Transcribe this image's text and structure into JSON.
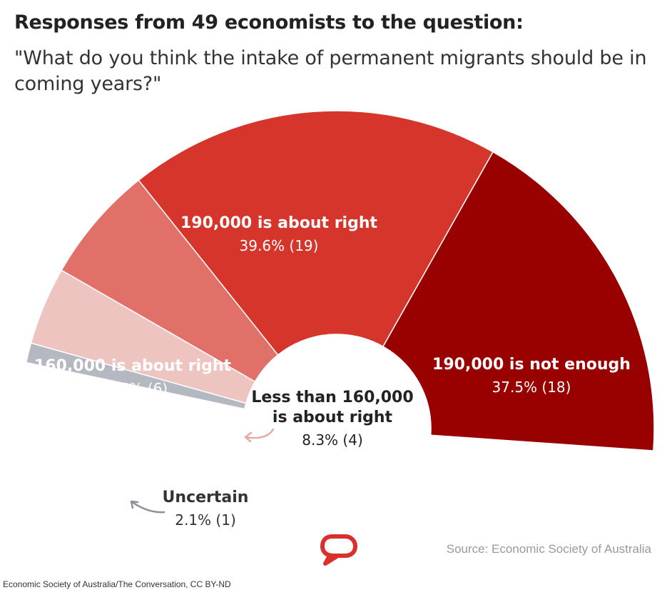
{
  "title": "Responses from 49 economists to the question:",
  "subtitle": "\"What do you think the intake of permanent migrants should be in coming years?\"",
  "source": "Source: Economic Society of Australia",
  "credit": "Economic Society of Australia/The Conversation, CC BY-ND",
  "colors": {
    "dark_red": "#990000",
    "red": "#d6352b",
    "salmon": "#e07068",
    "pink": "#eec4c0",
    "grey": "#b4b8c0",
    "logo_red": "#d9302b"
  },
  "chart_data": {
    "type": "pie",
    "variant": "semi-donut, clockwise from lower-left",
    "total_respondents": 49,
    "slices": [
      {
        "label": "Uncertain",
        "percent": 2.1,
        "count": 1,
        "value_label": "2.1% (1)",
        "color": "#b4b8c0"
      },
      {
        "label": "Less than 160,000 is about right",
        "label_lines": [
          "Less than 160,000",
          "is about right"
        ],
        "percent": 8.3,
        "count": 4,
        "value_label": "8.3% (4)",
        "color": "#eec4c0"
      },
      {
        "label": "160,000 is about right",
        "percent": 12.5,
        "count": 6,
        "value_label": "12.5% (6)",
        "color": "#e07068"
      },
      {
        "label": "190,000 is about right",
        "percent": 39.6,
        "count": 19,
        "value_label": "39.6% (19)",
        "color": "#d6352b"
      },
      {
        "label": "190,000 is not enough",
        "percent": 37.5,
        "count": 18,
        "value_label": "37.5% (18)",
        "color": "#990000"
      }
    ]
  }
}
